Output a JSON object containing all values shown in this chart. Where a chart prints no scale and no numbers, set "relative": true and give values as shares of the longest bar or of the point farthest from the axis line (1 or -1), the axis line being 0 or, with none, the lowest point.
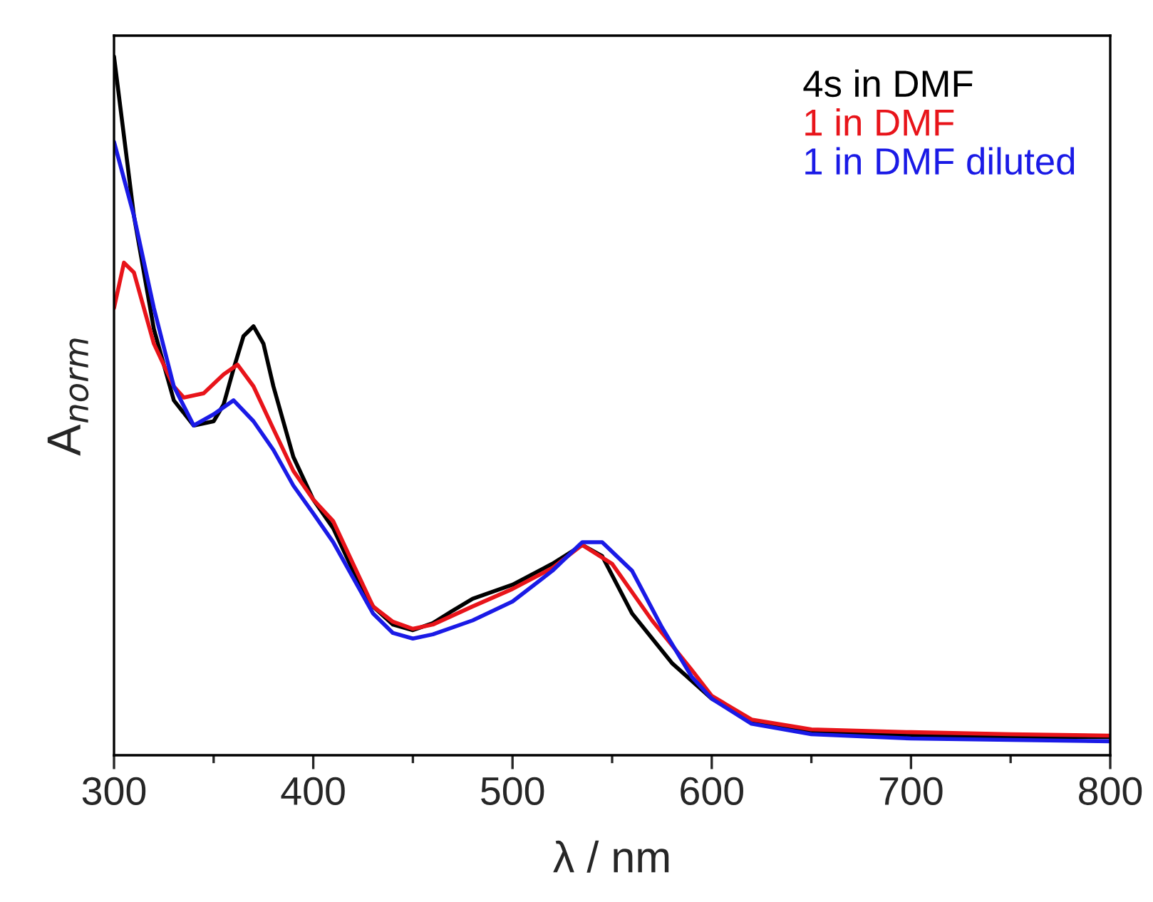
{
  "chart_data": {
    "type": "line",
    "relative": true,
    "xlabel": "λ / nm",
    "ylabel": "A$_{norm}$",
    "xlim": [
      300,
      800
    ],
    "xticks": [
      300,
      400,
      500,
      600,
      700,
      800
    ],
    "legend": "top right",
    "line_style": "solid",
    "marker": "none",
    "grid": false,
    "tick_labels": "x",
    "series": [
      {
        "name": "4s in DMF",
        "color": "#000000",
        "x": [
          300,
          310,
          320,
          330,
          340,
          350,
          355,
          360,
          365,
          370,
          375,
          380,
          390,
          400,
          410,
          420,
          430,
          440,
          450,
          460,
          470,
          480,
          500,
          520,
          535,
          545,
          560,
          580,
          600,
          620,
          650,
          700,
          750,
          800
        ],
        "values": [
          1.0,
          0.772,
          0.61,
          0.508,
          0.472,
          0.478,
          0.502,
          0.553,
          0.6,
          0.614,
          0.589,
          0.528,
          0.427,
          0.366,
          0.325,
          0.264,
          0.213,
          0.187,
          0.179,
          0.189,
          0.207,
          0.224,
          0.244,
          0.274,
          0.301,
          0.285,
          0.203,
          0.132,
          0.081,
          0.049,
          0.033,
          0.028,
          0.026,
          0.026
        ]
      },
      {
        "name": "1 in DMF",
        "color": "#e8141a",
        "x": [
          300,
          305,
          310,
          320,
          330,
          335,
          345,
          355,
          362,
          370,
          380,
          390,
          400,
          410,
          420,
          430,
          440,
          450,
          460,
          480,
          500,
          520,
          535,
          550,
          570,
          590,
          600,
          620,
          650,
          700,
          750,
          800
        ],
        "values": [
          0.64,
          0.705,
          0.691,
          0.589,
          0.528,
          0.512,
          0.518,
          0.545,
          0.559,
          0.528,
          0.467,
          0.407,
          0.366,
          0.335,
          0.274,
          0.213,
          0.191,
          0.181,
          0.187,
          0.213,
          0.238,
          0.268,
          0.301,
          0.274,
          0.193,
          0.122,
          0.085,
          0.051,
          0.037,
          0.033,
          0.03,
          0.028
        ]
      },
      {
        "name": "1 in DMF diluted",
        "color": "#1a1ae6",
        "x": [
          300,
          310,
          320,
          330,
          340,
          350,
          360,
          370,
          380,
          390,
          400,
          410,
          420,
          430,
          440,
          450,
          460,
          480,
          500,
          520,
          535,
          545,
          560,
          575,
          590,
          600,
          620,
          650,
          700,
          750,
          800
        ],
        "values": [
          0.878,
          0.772,
          0.64,
          0.528,
          0.472,
          0.488,
          0.508,
          0.478,
          0.437,
          0.386,
          0.346,
          0.305,
          0.254,
          0.203,
          0.175,
          0.167,
          0.173,
          0.193,
          0.22,
          0.264,
          0.305,
          0.305,
          0.264,
          0.183,
          0.112,
          0.081,
          0.045,
          0.03,
          0.024,
          0.022,
          0.02
        ]
      }
    ]
  }
}
